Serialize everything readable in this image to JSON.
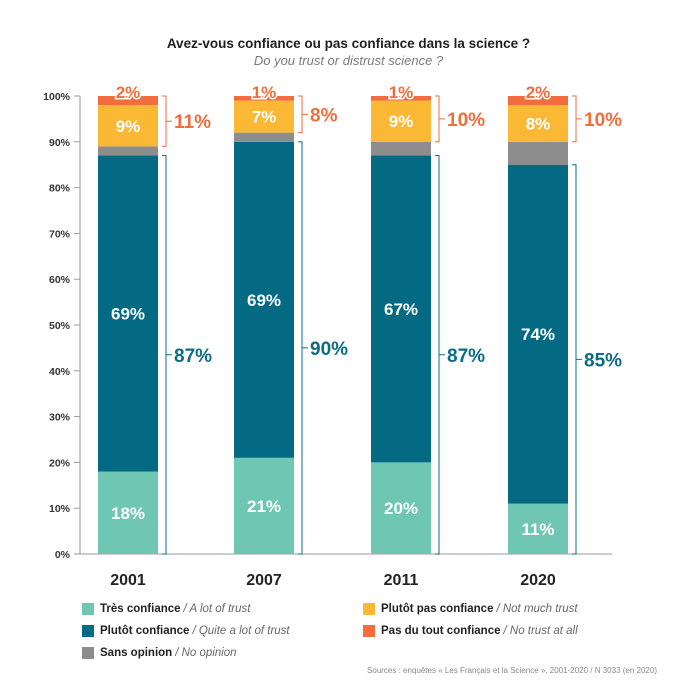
{
  "title": "Avez-vous confiance ou pas confiance dans la science ?",
  "subtitle": "Do you trust or distrust science ?",
  "source": "Sources : enquêtes « Les Français et la Science », 2001-2020 / N 3033 (en 2020)",
  "colors": {
    "tres": "#6fc7b3",
    "plutot": "#046a84",
    "sans": "#8d8d8d",
    "plutot_pas": "#fbb835",
    "pas_du_tout": "#f26d3d",
    "distrust_text": "#f26d3d",
    "trust_text": "#0b6c86"
  },
  "legend": [
    {
      "key": "tres",
      "fr": "Très confiance",
      "en": "/ A lot of trust"
    },
    {
      "key": "plutot",
      "fr": "Plutôt confiance",
      "en": "/ Quite a lot of trust"
    },
    {
      "key": "sans",
      "fr": "Sans opinion",
      "en": "/ No opinion"
    },
    {
      "key": "plutot_pas",
      "fr": "Plutôt pas confiance",
      "en": "/ Not much trust"
    },
    {
      "key": "pas_du_tout",
      "fr": "Pas du tout confiance",
      "en": "/ No trust at all"
    }
  ],
  "chart_data": {
    "type": "bar",
    "stacked": true,
    "categories": [
      "2001",
      "2007",
      "2011",
      "2020"
    ],
    "yticks": [
      "0%",
      "10%",
      "20%",
      "30%",
      "40%",
      "50%",
      "60%",
      "70%",
      "80%",
      "90%",
      "100%"
    ],
    "ylim": [
      0,
      100
    ],
    "series": [
      {
        "name": "Très confiance",
        "key": "tres",
        "values": [
          18,
          21,
          20,
          11
        ],
        "labels": [
          "18%",
          "21%",
          "20%",
          "11%"
        ]
      },
      {
        "name": "Plutôt confiance",
        "key": "plutot",
        "values": [
          69,
          69,
          67,
          74
        ],
        "labels": [
          "69%",
          "69%",
          "67%",
          "74%"
        ]
      },
      {
        "name": "Sans opinion",
        "key": "sans",
        "values": [
          2,
          2,
          3,
          5
        ],
        "labels": [
          "",
          "",
          "",
          ""
        ]
      },
      {
        "name": "Plutôt pas confiance",
        "key": "plutot_pas",
        "values": [
          9,
          7,
          9,
          8
        ],
        "labels": [
          "9%",
          "7%",
          "9%",
          "8%"
        ]
      },
      {
        "name": "Pas du tout confiance",
        "key": "pas_du_tout",
        "values": [
          2,
          1,
          1,
          2
        ],
        "labels": [
          "2%",
          "1%",
          "1%",
          "2%"
        ]
      }
    ],
    "trust_totals": [
      "87%",
      "90%",
      "87%",
      "85%"
    ],
    "distrust_totals": [
      "11%",
      "8%",
      "10%",
      "10%"
    ]
  }
}
